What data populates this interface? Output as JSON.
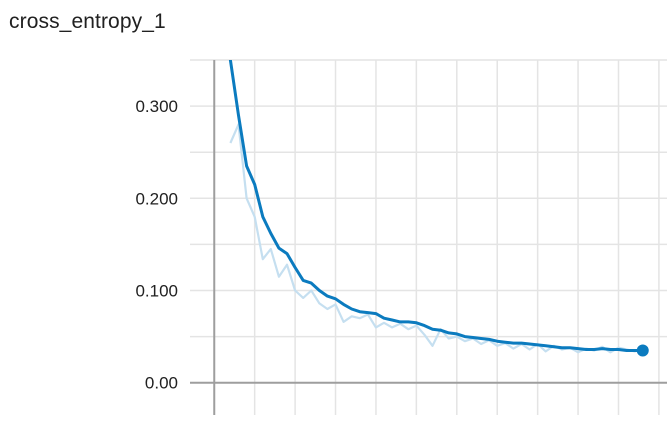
{
  "chart_data": {
    "type": "line",
    "title": "cross_entropy_1",
    "ylim": [
      -0.035,
      0.35
    ],
    "xlim": [
      -3,
      56
    ],
    "y_ticks": [
      0.0,
      0.1,
      0.2,
      0.3
    ],
    "y_tick_labels": [
      "0.00",
      "0.100",
      "0.200",
      "0.300"
    ],
    "x_tick_labels": [],
    "grid": true,
    "legend": "none",
    "colors": {
      "smoothed": "#0b7bbf",
      "raw": "#c5dff0",
      "grid": "#e4e4e4",
      "axis": "#9e9e9e"
    },
    "series": [
      {
        "role": "smoothed",
        "x": [
          2,
          3,
          4,
          5,
          6,
          7,
          8,
          9,
          10,
          11,
          12,
          13,
          14,
          15,
          16,
          17,
          18,
          19,
          20,
          21,
          22,
          23,
          24,
          25,
          26,
          27,
          28,
          29,
          30,
          31,
          32,
          33,
          34,
          35,
          36,
          37,
          38,
          39,
          40,
          41,
          42,
          43,
          44,
          45,
          46,
          47,
          48,
          49,
          50,
          51,
          52,
          53
        ],
        "values": [
          0.35,
          0.29,
          0.235,
          0.215,
          0.18,
          0.162,
          0.146,
          0.14,
          0.125,
          0.111,
          0.108,
          0.1,
          0.094,
          0.091,
          0.085,
          0.08,
          0.077,
          0.076,
          0.075,
          0.07,
          0.068,
          0.066,
          0.066,
          0.065,
          0.062,
          0.058,
          0.057,
          0.054,
          0.053,
          0.05,
          0.049,
          0.048,
          0.047,
          0.045,
          0.044,
          0.043,
          0.043,
          0.042,
          0.041,
          0.04,
          0.039,
          0.038,
          0.038,
          0.037,
          0.036,
          0.036,
          0.037,
          0.036,
          0.036,
          0.035,
          0.035,
          0.035
        ]
      },
      {
        "role": "raw",
        "x": [
          2,
          3,
          4,
          5,
          6,
          7,
          8,
          9,
          10,
          11,
          12,
          13,
          14,
          15,
          16,
          17,
          18,
          19,
          20,
          21,
          22,
          23,
          24,
          25,
          26,
          27,
          28,
          29,
          30,
          31,
          32,
          33,
          34,
          35,
          36,
          37,
          38,
          39,
          40,
          41,
          42,
          43,
          44,
          45,
          46,
          47,
          48,
          49,
          50,
          51,
          52,
          53
        ],
        "values": [
          0.26,
          0.28,
          0.2,
          0.18,
          0.134,
          0.145,
          0.115,
          0.128,
          0.1,
          0.092,
          0.1,
          0.086,
          0.08,
          0.085,
          0.066,
          0.072,
          0.07,
          0.074,
          0.06,
          0.065,
          0.06,
          0.064,
          0.058,
          0.062,
          0.052,
          0.04,
          0.058,
          0.048,
          0.05,
          0.045,
          0.048,
          0.042,
          0.046,
          0.04,
          0.043,
          0.037,
          0.042,
          0.036,
          0.042,
          0.034,
          0.04,
          0.036,
          0.038,
          0.033,
          0.037,
          0.035,
          0.039,
          0.033,
          0.038,
          0.036,
          0.034,
          0.036
        ]
      }
    ]
  }
}
